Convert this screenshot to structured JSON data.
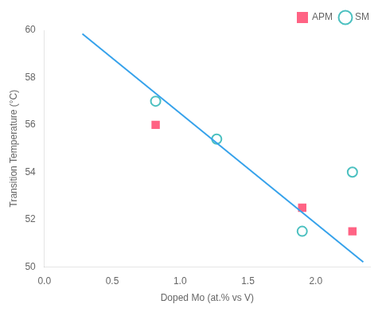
{
  "chart_data": {
    "type": "scatter",
    "xlabel": "Doped Mo (at.% vs V)",
    "ylabel": "Transition Temperature (°C)",
    "xlim": [
      0.0,
      2.4
    ],
    "ylim": [
      50,
      60
    ],
    "xticks": [
      {
        "value": 0.0,
        "label": "0.0"
      },
      0.5,
      {
        "value": 1.0,
        "label": "1.0"
      },
      1.5,
      {
        "value": 2.0,
        "label": "2.0"
      }
    ],
    "yticks": [
      50,
      52,
      54,
      56,
      58,
      60
    ],
    "grid": false,
    "legend": "upper right",
    "series": [
      {
        "type": "line",
        "x": [
          0.28,
          2.35
        ],
        "values": [
          59.85,
          50.2
        ]
      },
      {
        "name": "APM",
        "marker": "square",
        "x": [
          0.82,
          1.9,
          2.27
        ],
        "values": [
          56.0,
          52.5,
          51.5
        ]
      },
      {
        "name": "SM",
        "marker": "circle",
        "x": [
          0.82,
          1.27,
          1.9,
          2.27
        ],
        "values": [
          57.0,
          55.4,
          51.5,
          54.0
        ]
      }
    ]
  }
}
